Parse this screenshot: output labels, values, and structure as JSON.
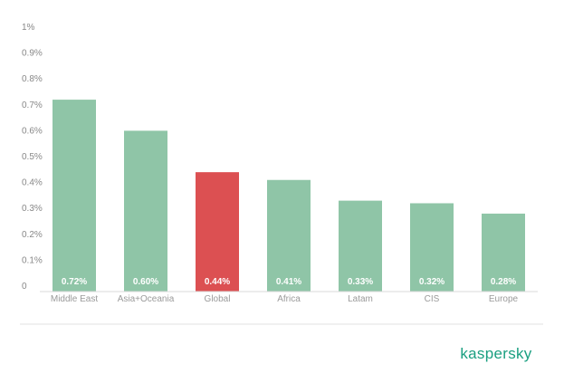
{
  "chart_data": {
    "type": "bar",
    "categories": [
      "Middle East",
      "Asia+Oceania",
      "Global",
      "Africa",
      "Latam",
      "CIS",
      "Europe"
    ],
    "values": [
      0.72,
      0.6,
      0.44,
      0.41,
      0.33,
      0.32,
      0.28
    ],
    "value_labels": [
      "0.72%",
      "0.60%",
      "0.44%",
      "0.41%",
      "0.33%",
      "0.32%",
      "0.28%"
    ],
    "highlight_category": "Global",
    "y_ticks": [
      "0",
      "0.1%",
      "0.2%",
      "0.3%",
      "0.4%",
      "0.5%",
      "0.6%",
      "0.7%",
      "0.8%",
      "0.9%",
      "1%"
    ],
    "ylim": [
      0,
      1
    ],
    "grid": false,
    "title": "",
    "xlabel": "",
    "ylabel": ""
  },
  "colors": {
    "bar": "#8fc5a7",
    "highlight": "#dc5052",
    "axis_text": "#888888",
    "logo": "#1a9f80"
  },
  "logo": {
    "text": "kaspersky"
  }
}
